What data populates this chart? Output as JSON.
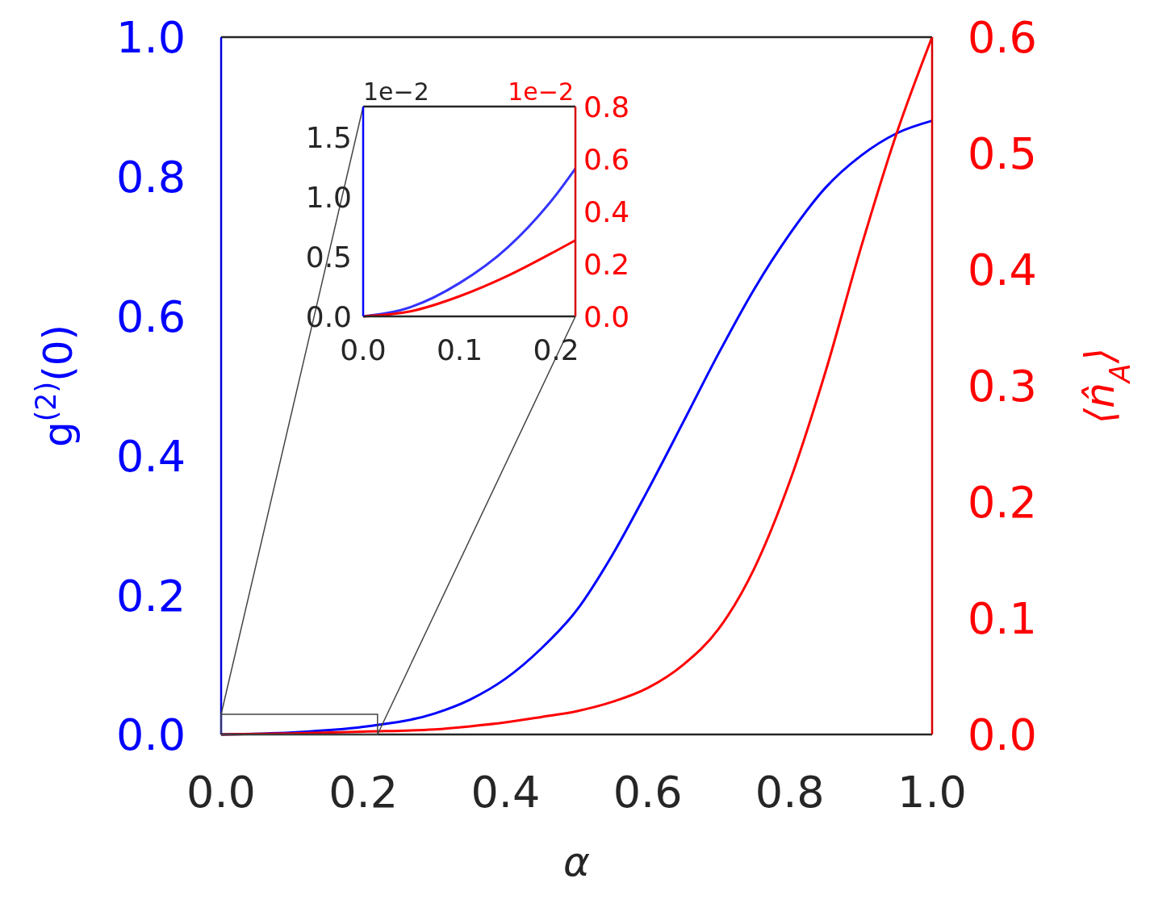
{
  "chart_data": [
    {
      "type": "line",
      "xlabel": "α",
      "ylabel": "g$^{(2)}$(0)",
      "y2label": "⟨n̂$_{A}$⟩",
      "xlim": [
        0,
        1
      ],
      "ylim": [
        0,
        1
      ],
      "y2lim": [
        0,
        0.6
      ],
      "xticks": [
        {
          "value": 0,
          "label": "0.0"
        },
        {
          "value": 0.2,
          "label": "0.2"
        },
        {
          "value": 0.4,
          "label": "0.4"
        },
        {
          "value": 0.6,
          "label": "0.6"
        },
        {
          "value": 0.8,
          "label": "0.8"
        },
        {
          "value": 1,
          "label": "1.0"
        }
      ],
      "yticks": [
        {
          "value": 0,
          "label": "0.0"
        },
        {
          "value": 0.2,
          "label": "0.2"
        },
        {
          "value": 0.4,
          "label": "0.4"
        },
        {
          "value": 0.6,
          "label": "0.6"
        },
        {
          "value": 0.8,
          "label": "0.8"
        },
        {
          "value": 1,
          "label": "1.0"
        }
      ],
      "y2ticks": [
        {
          "value": 0,
          "label": "0.0"
        },
        0.1,
        0.2,
        0.3,
        0.4,
        0.5,
        0.6
      ],
      "x": [
        0,
        0.1,
        0.2,
        0.3,
        0.35,
        0.4,
        0.45,
        0.5,
        0.55,
        0.6,
        0.65,
        0.7,
        0.75,
        0.8,
        0.85,
        0.9,
        0.95,
        1
      ],
      "series": [
        {
          "color": "#0000ff",
          "values": [
            0,
            0.003,
            0.011,
            0.03,
            0.05,
            0.08,
            0.123,
            0.178,
            0.257,
            0.35,
            0.448,
            0.547,
            0.639,
            0.718,
            0.784,
            0.83,
            0.862,
            0.88
          ]
        },
        {
          "color": "#ff0000",
          "axis": "y2",
          "values": [
            0,
            0.0008,
            0.0025,
            0.0044,
            0.007,
            0.0104,
            0.015,
            0.02,
            0.028,
            0.04,
            0.06,
            0.091,
            0.143,
            0.218,
            0.312,
            0.419,
            0.517,
            0.6
          ]
        }
      ],
      "grid": false
    },
    {
      "type": "line",
      "xlim": [
        0,
        0.22
      ],
      "ylim": [
        0,
        1.76
      ],
      "y2lim": [
        0,
        0.8
      ],
      "xticks": [
        {
          "value": 0,
          "label": "0.0"
        },
        0.1,
        0.2
      ],
      "yticks": [
        {
          "value": 0,
          "label": "0.0"
        },
        0.5,
        {
          "value": 1,
          "label": "1.0"
        },
        1.5
      ],
      "y2ticks": [
        {
          "value": 0,
          "label": "0.0"
        },
        0.2,
        0.4,
        0.6,
        0.8
      ],
      "annotations": [
        "1e−2",
        "1e−2"
      ],
      "x": [
        0,
        0.05,
        0.1,
        0.15,
        0.2,
        0.22
      ],
      "series": [
        {
          "color": "#3434ff",
          "values": [
            0,
            0.08,
            0.28,
            0.58,
            1.02,
            1.24
          ]
        },
        {
          "color": "#ff0000",
          "axis": "y2",
          "values": [
            0,
            0.02,
            0.077,
            0.155,
            0.25,
            0.29
          ]
        }
      ],
      "grid": false
    }
  ]
}
